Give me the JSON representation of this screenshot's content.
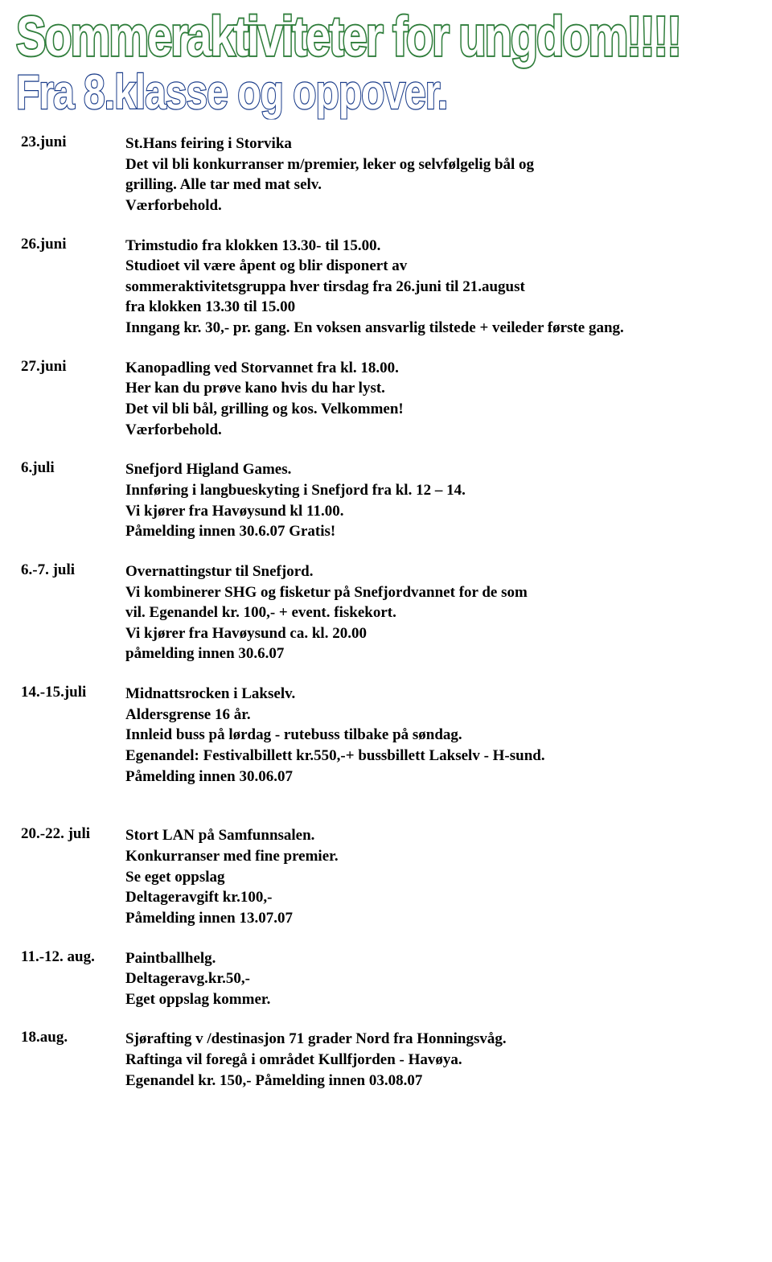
{
  "header": {
    "title1_text": "Sommeraktiviteter for ungdom!!!!",
    "title1_fontsize": 56,
    "title1_stroke_color": "#2e7d3a",
    "title1_stroke_width": 3,
    "title2_text": "Fra 8.klasse og oppover.",
    "title2_fontsize": 48,
    "title2_stroke_color": "#1a3c8a",
    "title2_stroke_width": 2
  },
  "body_fontsize": 19,
  "body_color": "#000000",
  "background_color": "#ffffff",
  "events": [
    {
      "date": "23.juni",
      "title": "St.Hans feiring i Storvika",
      "lines": [
        "Det vil bli konkurranser m/premier, leker og selvfølgelig bål og",
        "grilling. Alle tar med mat selv.",
        "Værforbehold."
      ]
    },
    {
      "date": "26.juni",
      "title": "Trimstudio fra klokken 13.30- til 15.00.",
      "lines": [
        "Studioet vil være åpent og blir disponert av",
        "sommeraktivitetsgruppa hver tirsdag fra 26.juni til 21.august",
        "fra klokken 13.30 til 15.00",
        "Inngang kr. 30,- pr. gang. En voksen ansvarlig tilstede  + veileder første gang."
      ]
    },
    {
      "date": "27.juni",
      "title": "Kanopadling ved Storvannet fra kl. 18.00.",
      "lines": [
        "Her kan du prøve kano hvis du har lyst.",
        "Det vil bli bål, grilling og kos. Velkommen!",
        "Værforbehold."
      ]
    },
    {
      "date": "6.juli",
      "title": "Snefjord Higland Games.",
      "lines": [
        "Innføring i langbueskyting i Snefjord fra kl. 12 – 14.",
        "Vi kjører fra Havøysund kl 11.00.",
        "Påmelding innen 30.6.07 Gratis!"
      ]
    },
    {
      "date": "6.-7. juli",
      "title": "Overnattingstur til Snefjord.",
      "lines": [
        "Vi kombinerer SHG og fisketur på Snefjordvannet for de som",
        "vil. Egenandel kr. 100,- + event. fiskekort.",
        "Vi kjører fra Havøysund ca. kl. 20.00",
        "påmelding innen 30.6.07"
      ]
    },
    {
      "date": "14.-15.juli",
      "title": "Midnattsrocken i Lakselv.",
      "lines": [
        "Aldersgrense 16 år.",
        "Innleid buss på lørdag - rutebuss tilbake på søndag.",
        "Egenandel: Festivalbillett kr.550,-+ bussbillett Lakselv - H-sund.",
        "Påmelding innen 30.06.07"
      ],
      "gap_after": 48
    },
    {
      "date": "20.-22. juli",
      "title": "Stort LAN på Samfunnsalen.",
      "lines": [
        "Konkurranser med fine premier.",
        "Se eget oppslag",
        "Deltageravgift kr.100,-",
        "Påmelding innen 13.07.07"
      ]
    },
    {
      "date": "11.-12. aug.",
      "title": "Paintballhelg.",
      "lines": [
        "Deltageravg.kr.50,-",
        "Eget oppslag kommer."
      ]
    },
    {
      "date": "18.aug.",
      "title": "Sjørafting v /destinasjon 71 grader Nord fra Honningsvåg.",
      "lines": [
        "Raftinga vil foregå i området Kullfjorden - Havøya.",
        "Egenandel kr. 150,-  Påmelding innen 03.08.07"
      ]
    }
  ]
}
